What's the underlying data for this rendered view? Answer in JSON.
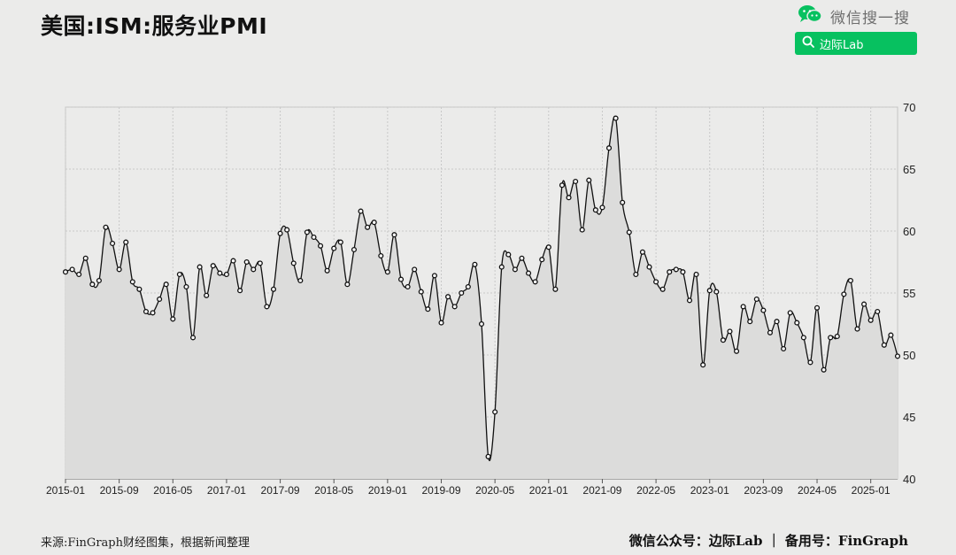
{
  "header": {
    "title": "美国:ISM:服务业PMI",
    "wechat_label": "微信搜一搜",
    "search_button_label": "边际Lab",
    "brand_color": "#07c160"
  },
  "footer": {
    "source": "来源:FinGraph财经图集，根据新闻整理",
    "credit": "微信公众号：边际Lab ｜ 备用号：FinGraph"
  },
  "chart_data": {
    "type": "line",
    "title": "美国:ISM:服务业PMI",
    "xlabel": "",
    "ylabel": "",
    "x_start": "2015-01",
    "frequency": "monthly",
    "x_ticks": [
      "2015-01",
      "2015-09",
      "2016-05",
      "2017-01",
      "2017-09",
      "2018-05",
      "2019-01",
      "2019-09",
      "2020-05",
      "2021-01",
      "2021-09",
      "2022-05",
      "2023-01",
      "2023-09",
      "2024-05",
      "2025-01"
    ],
    "ylim": [
      40,
      70
    ],
    "y_ticks": [
      40,
      45,
      50,
      55,
      60,
      65,
      70
    ],
    "y_axis_side": "right",
    "grid": true,
    "fill": "area",
    "series": [
      {
        "values": [
          56.7,
          56.9,
          56.5,
          57.8,
          55.7,
          56.0,
          60.3,
          59.0,
          56.9,
          59.1,
          55.9,
          55.3,
          53.5,
          53.4,
          54.5,
          55.7,
          52.9,
          56.5,
          55.5,
          51.4,
          57.1,
          54.8,
          57.2,
          56.6,
          56.5,
          57.6,
          55.2,
          57.5,
          56.9,
          57.4,
          53.9,
          55.3,
          59.8,
          60.1,
          57.4,
          56.0,
          59.9,
          59.5,
          58.8,
          56.8,
          58.6,
          59.1,
          55.7,
          58.5,
          61.6,
          60.3,
          60.7,
          58.0,
          56.7,
          59.7,
          56.1,
          55.5,
          56.9,
          55.1,
          53.7,
          56.4,
          52.6,
          54.7,
          53.9,
          55.0,
          55.5,
          57.3,
          52.5,
          41.8,
          45.4,
          57.1,
          58.1,
          56.9,
          57.8,
          56.6,
          55.9,
          57.7,
          58.7,
          55.3,
          63.7,
          62.7,
          64.0,
          60.1,
          64.1,
          61.7,
          61.9,
          66.7,
          69.1,
          62.3,
          59.9,
          56.5,
          58.3,
          57.1,
          55.9,
          55.3,
          56.7,
          56.9,
          56.7,
          54.4,
          56.5,
          49.2,
          55.2,
          55.1,
          51.2,
          51.9,
          50.3,
          53.9,
          52.7,
          54.5,
          53.6,
          51.8,
          52.7,
          50.5,
          53.4,
          52.6,
          51.4,
          49.4,
          53.8,
          48.8,
          51.4,
          51.5,
          54.9,
          56.0,
          52.1,
          54.1,
          52.8,
          53.5,
          50.8,
          51.6,
          49.9
        ]
      }
    ],
    "line_color": "#111111",
    "fill_color": "#dcdcdb",
    "marker": "circle-hollow"
  }
}
